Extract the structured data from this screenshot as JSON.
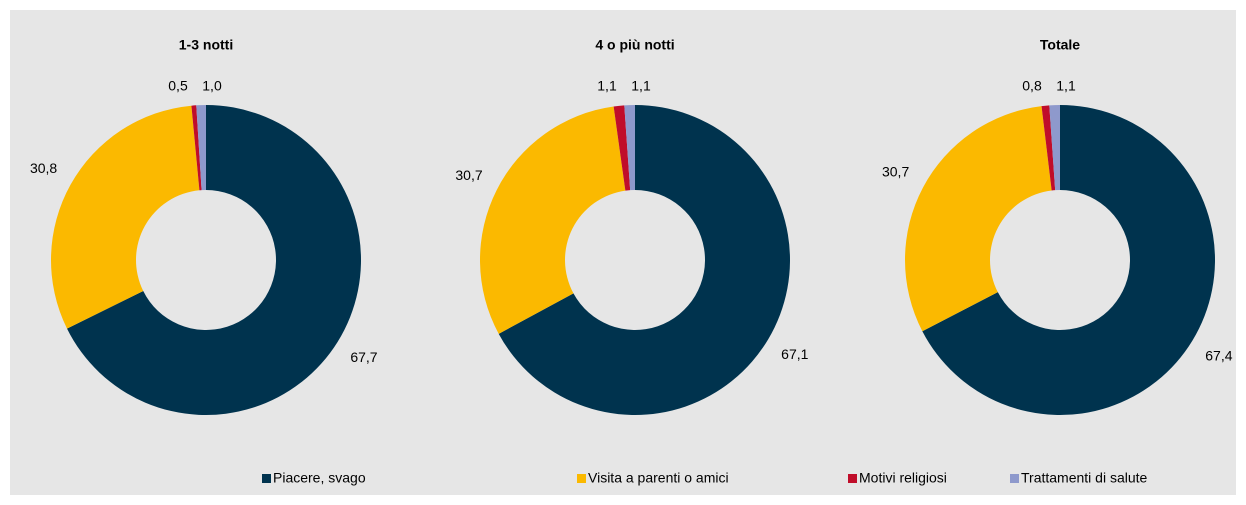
{
  "legend": {
    "items": [
      {
        "name": "Piacere, svago",
        "color": "#00334e"
      },
      {
        "name": "Visita a parenti o amici",
        "color": "#fbb900"
      },
      {
        "name": "Motivi religiosi",
        "color": "#c00d2a"
      },
      {
        "name": "Trattamenti di salute",
        "color": "#8e99cc"
      }
    ]
  },
  "chart_data": [
    {
      "type": "donut",
      "title": "1-3 notti",
      "values": [
        67.7,
        30.8,
        0.5,
        1.0
      ],
      "value_labels": [
        "67,7",
        "30,8",
        "0,5",
        "1,0"
      ]
    },
    {
      "type": "donut",
      "title": "4 o più notti",
      "values": [
        67.1,
        30.7,
        1.1,
        1.1
      ],
      "value_labels": [
        "67,1",
        "30,7",
        "1,1",
        "1,1"
      ]
    },
    {
      "type": "donut",
      "title": "Totale",
      "values": [
        67.4,
        30.7,
        0.8,
        1.1
      ],
      "value_labels": [
        "67,4",
        "30,7",
        "0,8",
        "1,1"
      ]
    }
  ]
}
